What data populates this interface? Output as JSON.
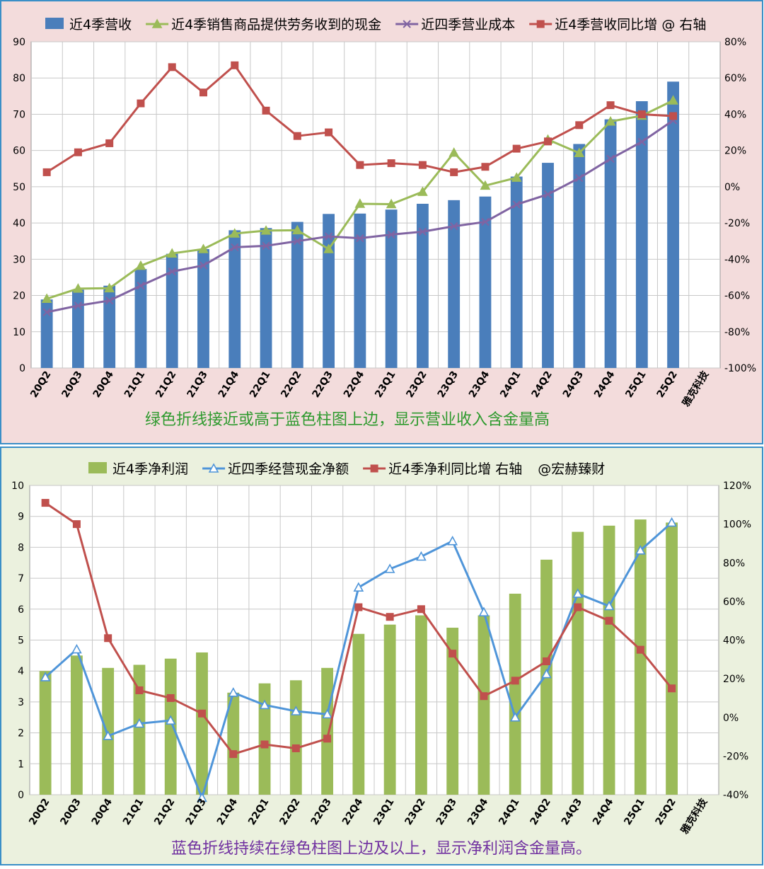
{
  "chart_data": [
    {
      "type": "bar",
      "background": "#f3dcdc",
      "border_color": "#3a8fc7",
      "categories": [
        "20Q2",
        "20Q3",
        "20Q4",
        "21Q1",
        "21Q2",
        "21Q3",
        "21Q4",
        "22Q1",
        "22Q2",
        "22Q3",
        "22Q4",
        "23Q1",
        "23Q2",
        "23Q3",
        "23Q4",
        "24Q1",
        "24Q2",
        "24Q3",
        "24Q4",
        "25Q1",
        "25Q2"
      ],
      "extra_category_label": "雅克科技",
      "ylim": [
        0,
        90
      ],
      "y2lim": [
        -100,
        80
      ],
      "y_ticks": [
        0,
        10,
        20,
        30,
        40,
        50,
        60,
        70,
        80,
        90
      ],
      "y2_ticks": [
        -100,
        -80,
        -60,
        -40,
        -20,
        0,
        20,
        40,
        60,
        80
      ],
      "series": [
        {
          "name": "近4季营收",
          "kind": "bar",
          "axis": "left",
          "color": "#4a7ebb",
          "values": [
            18.9,
            21.6,
            22.7,
            27.3,
            31.5,
            32.8,
            38.0,
            38.6,
            40.3,
            42.5,
            42.6,
            43.7,
            45.3,
            46.3,
            47.3,
            52.8,
            56.6,
            61.8,
            68.6,
            73.6,
            79.0
          ]
        },
        {
          "name": "近4季销售商品提供劳务收到的现金",
          "kind": "line",
          "axis": "left",
          "color": "#9bbb59",
          "marker": "triangle",
          "values": [
            19.1,
            21.9,
            22.0,
            28.2,
            31.6,
            32.8,
            37.1,
            37.9,
            38.0,
            32.8,
            45.3,
            45.2,
            48.6,
            59.4,
            50.3,
            52.5,
            63.0,
            59.3,
            68.0,
            69.6,
            73.8
          ]
        },
        {
          "name": "近四季营业成本",
          "kind": "line",
          "axis": "left",
          "color": "#8064a2",
          "marker": "x",
          "values": [
            15.4,
            17.2,
            18.6,
            22.7,
            26.6,
            28.3,
            33.3,
            33.7,
            35.0,
            36.3,
            35.8,
            36.8,
            37.6,
            39.1,
            40.3,
            45.1,
            47.9,
            52.4,
            57.7,
            62.4,
            68.3
          ]
        },
        {
          "name": "近4季营收同比增 @ 右轴",
          "kind": "line",
          "axis": "right",
          "color": "#c0504d",
          "marker": "square",
          "values": [
            8,
            19,
            24,
            46,
            66,
            52,
            67,
            42,
            28,
            30,
            12,
            13,
            12,
            8,
            11,
            21,
            25,
            34,
            45,
            40,
            39
          ]
        }
      ],
      "caption": "绿色折线接近或高于蓝色柱图上边，显示营业收入含金量高"
    },
    {
      "type": "bar",
      "background": "#ebf1de",
      "border_color": "#3a8fc7",
      "categories": [
        "20Q2",
        "20Q3",
        "20Q4",
        "21Q1",
        "21Q2",
        "21Q3",
        "21Q4",
        "22Q1",
        "22Q2",
        "22Q3",
        "22Q4",
        "23Q1",
        "23Q2",
        "23Q3",
        "23Q4",
        "24Q1",
        "24Q2",
        "24Q3",
        "24Q4",
        "25Q1",
        "25Q2"
      ],
      "extra_category_label": "雅克科技",
      "ylim": [
        0,
        10
      ],
      "y2lim": [
        -40,
        120
      ],
      "y_ticks": [
        0,
        1,
        2,
        3,
        4,
        5,
        6,
        7,
        8,
        9,
        10
      ],
      "y2_ticks": [
        -40,
        -20,
        0,
        20,
        40,
        60,
        80,
        100,
        120
      ],
      "series": [
        {
          "name": "近4季净利润",
          "kind": "bar",
          "axis": "left",
          "color": "#9bbb59",
          "values": [
            4.0,
            4.5,
            4.1,
            4.2,
            4.4,
            4.6,
            3.3,
            3.6,
            3.7,
            4.1,
            5.2,
            5.5,
            5.8,
            5.4,
            5.8,
            6.5,
            7.6,
            8.5,
            8.7,
            8.9,
            8.8
          ]
        },
        {
          "name": "近四季经营现金净额",
          "kind": "line",
          "axis": "left",
          "color": "#4f95d9",
          "marker": "triangle",
          "values": [
            3.8,
            4.7,
            1.9,
            2.3,
            2.4,
            -0.1,
            3.3,
            2.9,
            2.7,
            2.6,
            6.7,
            7.3,
            7.7,
            8.2,
            5.9,
            2.5,
            3.9,
            6.5,
            6.1,
            7.9,
            8.8
          ]
        },
        {
          "name": "近4季净利同比增 右轴",
          "kind": "line",
          "axis": "right",
          "color": "#c0504d",
          "marker": "square",
          "values": [
            111,
            100,
            41,
            14,
            10,
            2,
            -19,
            -14,
            -16,
            -11,
            57,
            52,
            56,
            33,
            11,
            19,
            29,
            57,
            50,
            35,
            15
          ]
        }
      ],
      "legend_extra": "@宏赫臻财",
      "caption": "蓝色折线持续在绿色柱图上边及以上，显示净利润含金量高。"
    }
  ]
}
